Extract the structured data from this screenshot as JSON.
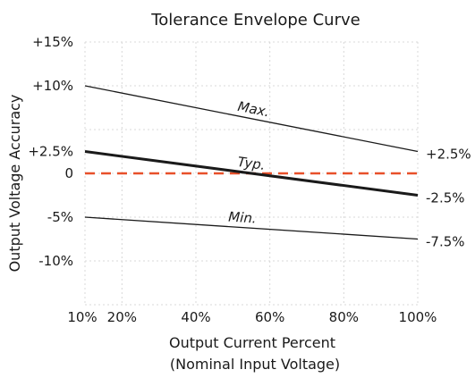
{
  "chart_data": {
    "type": "line",
    "title": "Tolerance Envelope  Curve",
    "xlabel": "Output Current Percent",
    "xlabel2": "(Nominal  Input Voltage)",
    "ylabel": "Output  Voltage Accuracy",
    "xlim": [
      10,
      100
    ],
    "ylim": [
      -15,
      15
    ],
    "x_ticks": [
      10,
      20,
      40,
      60,
      80,
      100
    ],
    "x_tick_labels": [
      "10%",
      "20%",
      "40%",
      "60%",
      "80%",
      "100%"
    ],
    "y_ticks": [
      15,
      10,
      2.5,
      0,
      -5,
      -10
    ],
    "y_tick_labels": [
      "+15%",
      "+10%",
      "+2.5%",
      "0",
      "-5%",
      "-10%"
    ],
    "grid": true,
    "series": [
      {
        "name": "Max.",
        "x": [
          10,
          100
        ],
        "values": [
          10,
          2.5
        ],
        "color": "#1a1a1a",
        "width": 1.3,
        "end_label": "+2.5%"
      },
      {
        "name": "Typ.",
        "x": [
          10,
          100
        ],
        "values": [
          2.5,
          -2.5
        ],
        "color": "#1a1a1a",
        "width": 3,
        "end_label": "-2.5%"
      },
      {
        "name": "Min.",
        "x": [
          10,
          100
        ],
        "values": [
          -5,
          -7.5
        ],
        "color": "#1a1a1a",
        "width": 1.3,
        "end_label": "-7.5%"
      }
    ],
    "reference_line": {
      "y": 0,
      "color": "#e8502a",
      "style": "dashed"
    }
  }
}
